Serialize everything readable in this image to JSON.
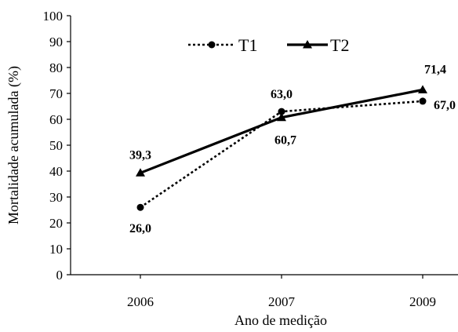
{
  "chart_data": {
    "type": "line",
    "categories": [
      "2006",
      "2007",
      "2009"
    ],
    "series": [
      {
        "name": "T1",
        "values": [
          26.0,
          63.0,
          67.0
        ],
        "labels": [
          "26,0",
          "63,0",
          "67,0"
        ],
        "style": "dotted",
        "marker": "circle"
      },
      {
        "name": "T2",
        "values": [
          39.3,
          60.7,
          71.4
        ],
        "labels": [
          "39,3",
          "60,7",
          "71,4"
        ],
        "style": "solid",
        "marker": "triangle"
      }
    ],
    "xlabel": "Ano de medição",
    "ylabel": "Mortalidade acumulada (%)",
    "ylim": [
      0,
      100
    ],
    "yticks": [
      0,
      10,
      20,
      30,
      40,
      50,
      60,
      70,
      80,
      90,
      100
    ],
    "grid": false,
    "legend_position": "top",
    "colors": {
      "line": "#000000",
      "background": "#ffffff"
    }
  }
}
